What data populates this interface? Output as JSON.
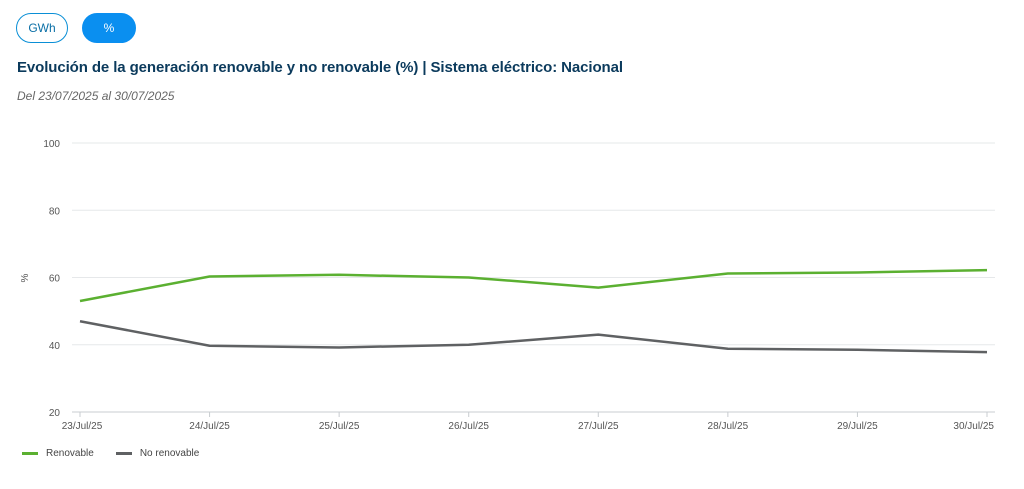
{
  "toggles": [
    {
      "label": "GWh",
      "active": false
    },
    {
      "label": "%",
      "active": true
    }
  ],
  "header": {
    "title": "Evolución de la generación renovable y no renovable (%) | Sistema eléctrico: Nacional",
    "subtitle": "Del 23/07/2025 al 30/07/2025"
  },
  "chart_data": {
    "type": "line",
    "title": "Evolución de la generación renovable y no renovable (%) | Sistema eléctrico: Nacional",
    "subtitle": "Del 23/07/2025 al 30/07/2025",
    "xlabel": "",
    "ylabel": "%",
    "categories": [
      "23/Jul/25",
      "24/Jul/25",
      "25/Jul/25",
      "26/Jul/25",
      "27/Jul/25",
      "28/Jul/25",
      "29/Jul/25",
      "30/Jul/25"
    ],
    "ylim": [
      20,
      100
    ],
    "yticks": [
      20,
      40,
      60,
      80,
      100
    ],
    "grid": true,
    "legend_position": "bottom-left",
    "series": [
      {
        "name": "Renovable",
        "color": "#5bb031",
        "values": [
          53,
          60.3,
          60.8,
          60,
          57,
          61.2,
          61.5,
          62.2
        ]
      },
      {
        "name": "No renovable",
        "color": "#5f6163",
        "values": [
          47,
          39.7,
          39.2,
          40,
          43,
          38.8,
          38.5,
          37.8
        ]
      }
    ]
  }
}
